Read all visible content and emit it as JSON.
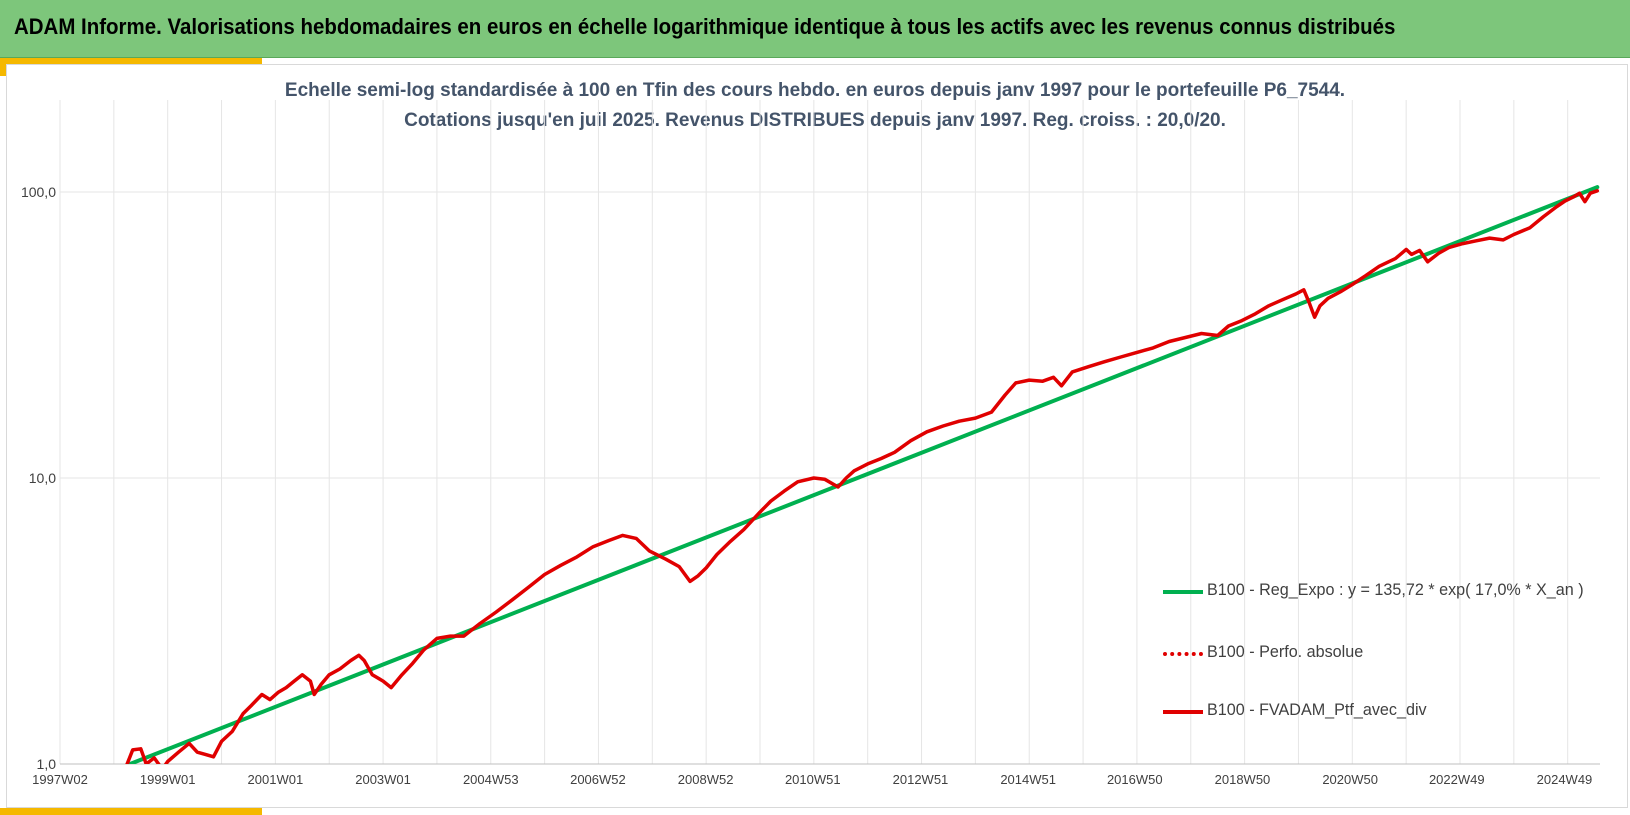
{
  "header": {
    "title": "ADAM Informe. Valorisations hebdomadaires en euros en échelle logarithmique identique à tous les actifs avec les revenus connus distribués"
  },
  "chart_data": {
    "type": "line",
    "title": "Echelle semi-log standardisée  à 100 en Tfin des cours hebdo.  en euros depuis janv 1997 pour  le portefeuille  P6_7544.",
    "subtitle": "Cotations  jusqu'en juil 2025. Revenus DISTRIBUES depuis janv 1997. Reg. croiss. : 20,0/20.",
    "xlabel": "",
    "ylabel": "",
    "y_scale": "log",
    "ylim": [
      1,
      200
    ],
    "y_ticks": [
      1,
      10,
      100
    ],
    "y_tick_labels": [
      "1,0",
      "10,0",
      "100,0"
    ],
    "xlim": [
      1997.0,
      2025.6
    ],
    "x_ticks": [
      1997.0,
      1999.0,
      2001.0,
      2003.0,
      2005.0,
      2006.99,
      2008.99,
      2010.98,
      2012.98,
      2014.98,
      2016.96,
      2018.96,
      2020.96,
      2022.94,
      2024.94
    ],
    "x_tick_labels": [
      "1997W02",
      "1999W01",
      "2001W01",
      "2003W01",
      "2004W53",
      "2006W52",
      "2008W52",
      "2010W51",
      "2012W51",
      "2014W51",
      "2016W50",
      "2018W50",
      "2020W50",
      "2022W49",
      "2024W49"
    ],
    "grid": true,
    "legend_position": "bottom-right",
    "series": [
      {
        "name": "B100 - Reg_Expo : y = 135,72 * exp( 17,0% *  X_an )",
        "color": "#00b050",
        "style": "solid",
        "x": [
          1998.3,
          2025.55
        ],
        "y": [
          1.0,
          104.0
        ]
      },
      {
        "name": "B100 - Perfo. absolue",
        "color": "#e00000",
        "style": "dotted",
        "x": [],
        "y": []
      },
      {
        "name": "B100 - FVADAM_Ptf_avec_div",
        "color": "#e00000",
        "style": "solid",
        "x": [
          1998.2,
          1998.35,
          1998.5,
          1998.6,
          1998.75,
          1998.9,
          1999.0,
          1999.2,
          1999.4,
          1999.55,
          1999.7,
          1999.85,
          2000.0,
          2000.2,
          2000.4,
          2000.55,
          2000.75,
          2000.9,
          2001.05,
          2001.2,
          2001.35,
          2001.5,
          2001.65,
          2001.72,
          2001.85,
          2002.0,
          2002.2,
          2002.4,
          2002.55,
          2002.65,
          2002.8,
          2003.0,
          2003.15,
          2003.35,
          2003.55,
          2003.75,
          2004.0,
          2004.25,
          2004.5,
          2004.8,
          2005.1,
          2005.4,
          2005.7,
          2006.0,
          2006.3,
          2006.6,
          2006.9,
          2007.2,
          2007.45,
          2007.7,
          2007.95,
          2008.25,
          2008.5,
          2008.7,
          2008.85,
          2009.0,
          2009.2,
          2009.45,
          2009.7,
          2010.0,
          2010.2,
          2010.45,
          2010.7,
          2011.0,
          2011.2,
          2011.45,
          2011.6,
          2011.75,
          2012.0,
          2012.25,
          2012.5,
          2012.8,
          2013.1,
          2013.4,
          2013.7,
          2014.0,
          2014.3,
          2014.55,
          2014.75,
          2015.0,
          2015.25,
          2015.45,
          2015.6,
          2015.8,
          2016.1,
          2016.4,
          2016.7,
          2017.0,
          2017.3,
          2017.6,
          2017.9,
          2018.2,
          2018.5,
          2018.7,
          2018.95,
          2019.2,
          2019.45,
          2019.7,
          2019.95,
          2020.1,
          2020.2,
          2020.3,
          2020.4,
          2020.55,
          2020.8,
          2021.0,
          2021.25,
          2021.5,
          2021.8,
          2022.0,
          2022.1,
          2022.25,
          2022.4,
          2022.6,
          2022.8,
          2023.05,
          2023.3,
          2023.55,
          2023.8,
          2024.0,
          2024.3,
          2024.55,
          2024.8,
          2024.95,
          2025.1,
          2025.22,
          2025.32,
          2025.42,
          2025.55
        ],
        "y": [
          0.95,
          1.12,
          1.13,
          1.0,
          1.05,
          0.96,
          1.02,
          1.1,
          1.18,
          1.1,
          1.08,
          1.06,
          1.2,
          1.3,
          1.5,
          1.6,
          1.75,
          1.68,
          1.78,
          1.85,
          1.95,
          2.05,
          1.95,
          1.75,
          1.9,
          2.05,
          2.15,
          2.3,
          2.4,
          2.3,
          2.05,
          1.95,
          1.85,
          2.05,
          2.25,
          2.5,
          2.75,
          2.8,
          2.8,
          3.1,
          3.4,
          3.75,
          4.15,
          4.6,
          4.95,
          5.3,
          5.75,
          6.05,
          6.3,
          6.15,
          5.55,
          5.2,
          4.9,
          4.35,
          4.55,
          4.85,
          5.4,
          6.0,
          6.6,
          7.6,
          8.3,
          9.0,
          9.7,
          10.0,
          9.9,
          9.3,
          10.0,
          10.6,
          11.2,
          11.7,
          12.3,
          13.5,
          14.5,
          15.2,
          15.8,
          16.2,
          17.0,
          19.5,
          21.5,
          22.0,
          21.8,
          22.5,
          21.0,
          23.5,
          24.5,
          25.5,
          26.5,
          27.5,
          28.5,
          30.0,
          31.0,
          32.0,
          31.5,
          34.0,
          35.5,
          37.5,
          40.0,
          42.0,
          44.0,
          45.5,
          41.0,
          36.5,
          40.0,
          42.5,
          45.0,
          47.5,
          51.0,
          55.0,
          58.5,
          63.0,
          60.5,
          62.5,
          57.0,
          61.0,
          64.0,
          66.0,
          67.5,
          69.0,
          68.0,
          71.0,
          75.0,
          82.0,
          89.0,
          93.0,
          96.0,
          99.0,
          92.5,
          99.0,
          101.0
        ]
      }
    ]
  }
}
